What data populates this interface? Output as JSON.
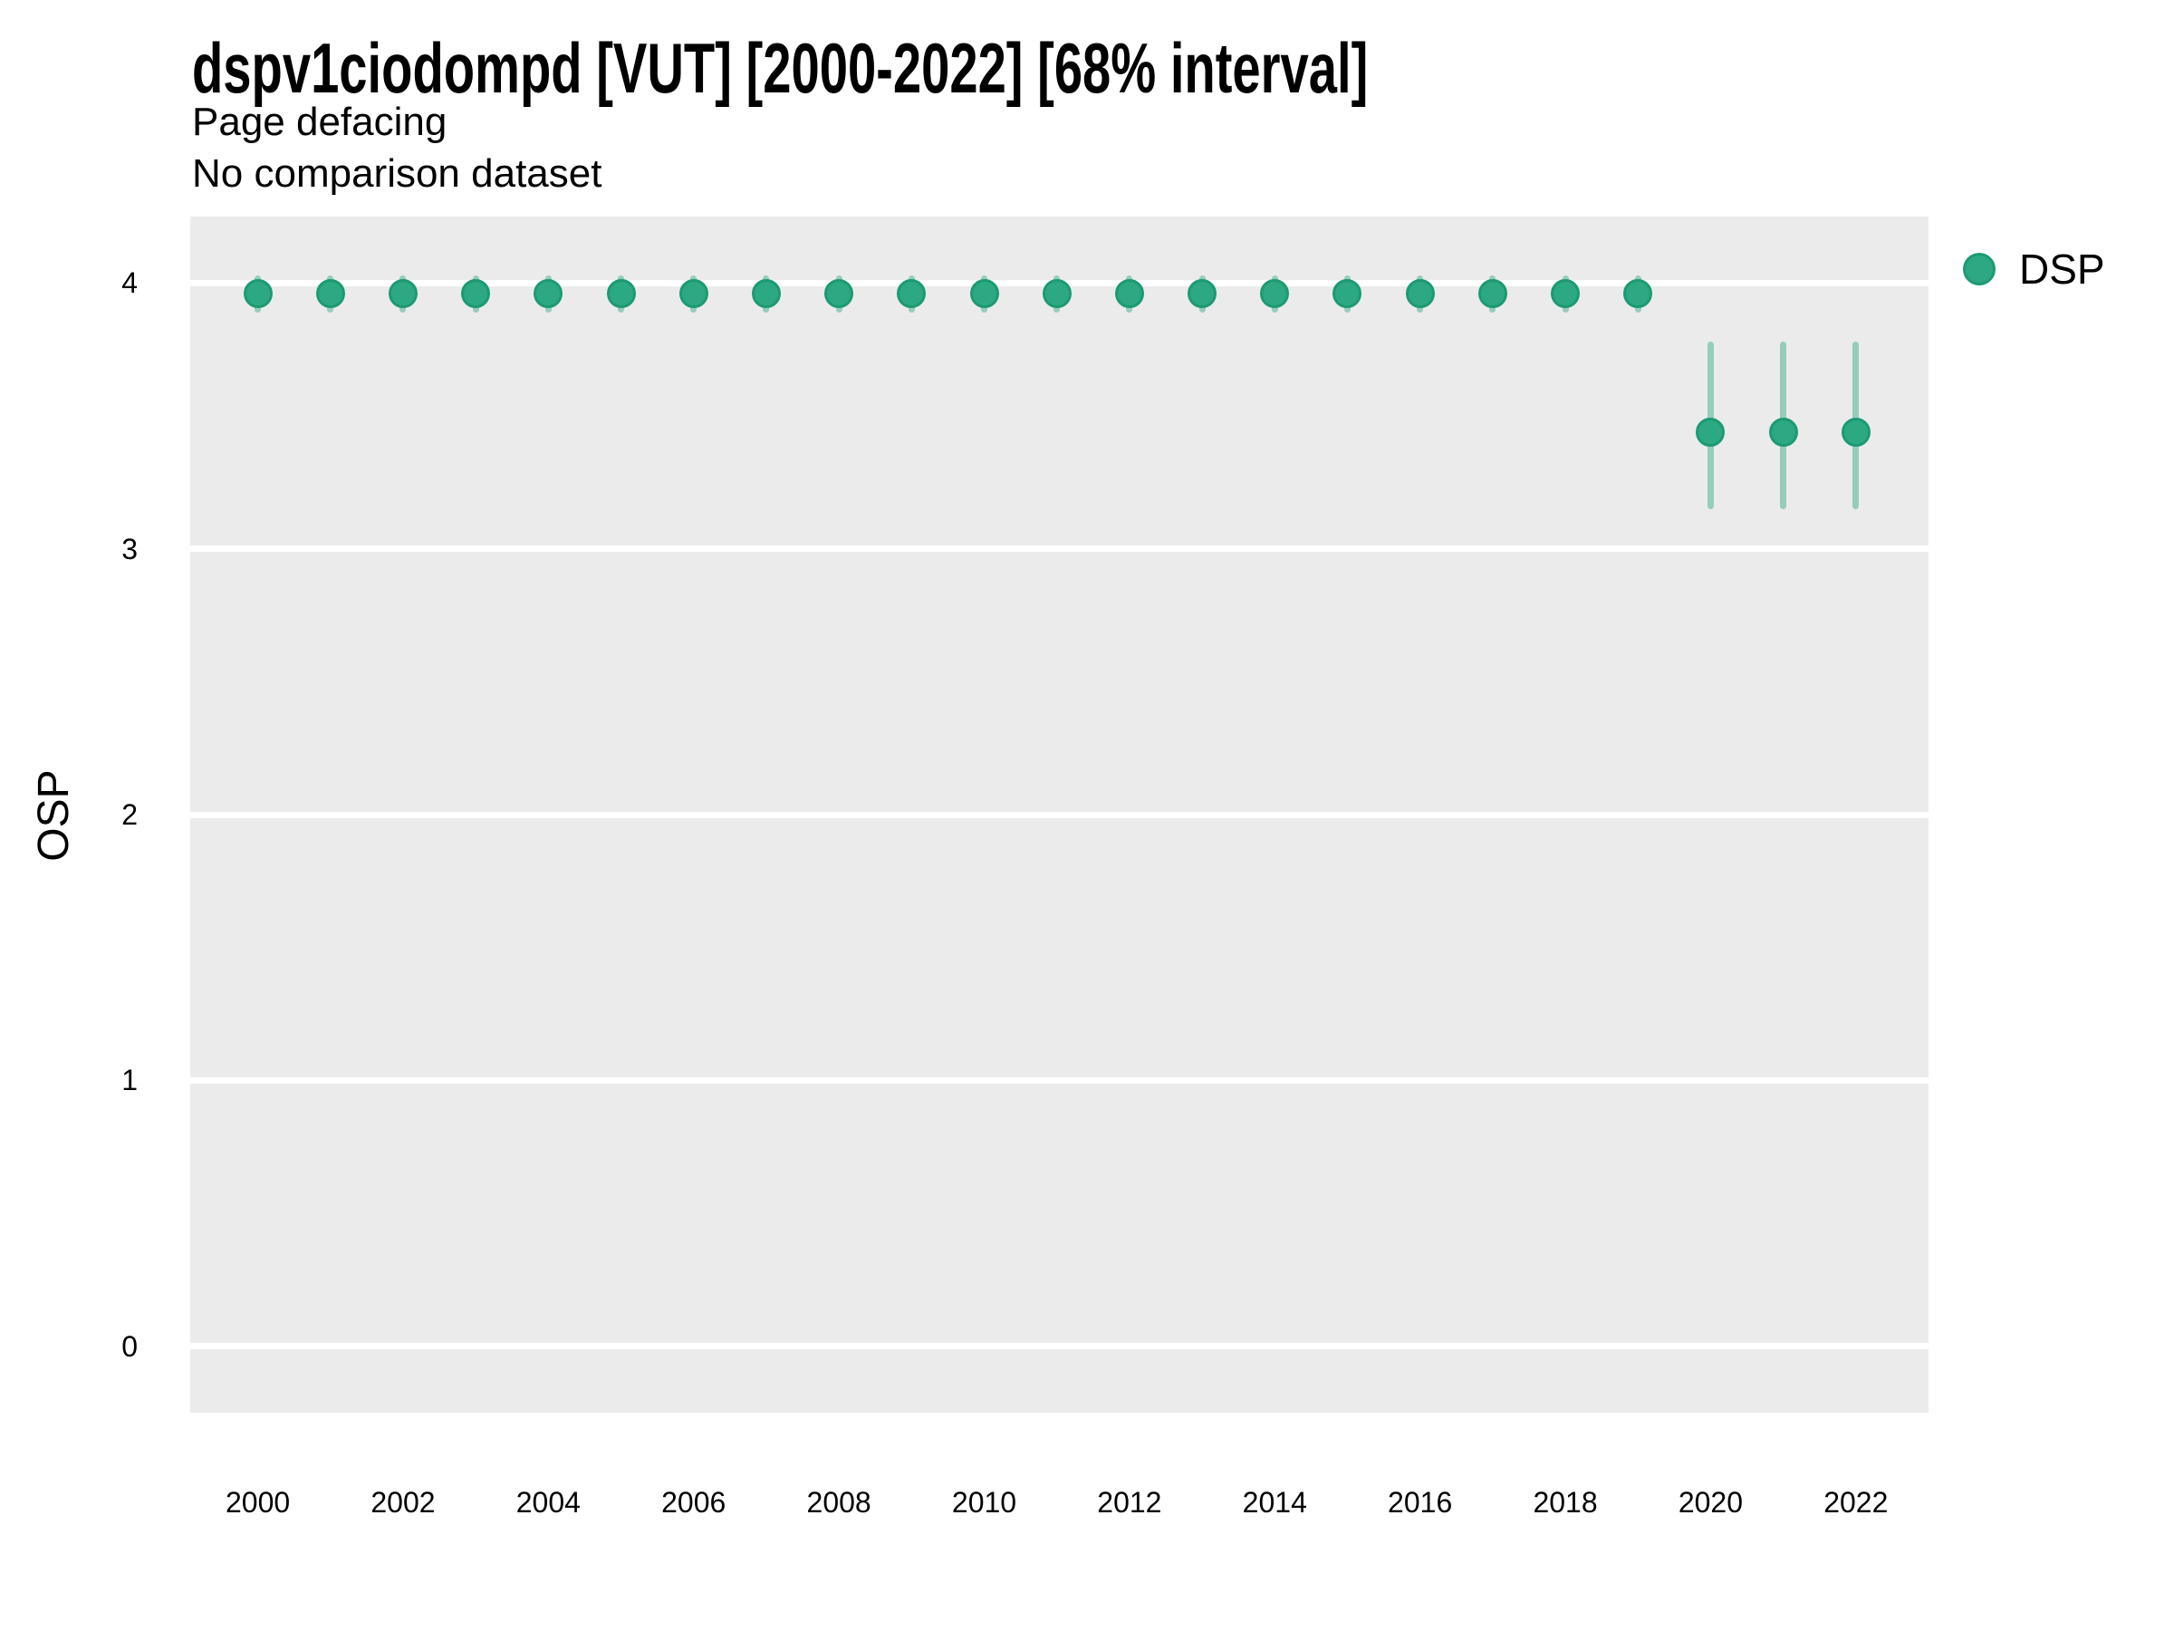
{
  "title": "dspv1ciodompd [VUT] [2000-2022] [68% interval]",
  "subtitle": "Page defacing",
  "subtitle2": "No comparison dataset",
  "legend": {
    "position": "right",
    "items": [
      {
        "label": "DSP",
        "marker": "circle",
        "color": "#2ca883",
        "stroke": "#1d9a72"
      }
    ]
  },
  "colors": {
    "panel_background": "#ebebeb",
    "gridline": "#ffffff",
    "point_fill": "#2ca883",
    "point_stroke": "#1d9a72",
    "interval_line": "rgba(44,168,131,0.45)",
    "text": "#000000"
  },
  "chart_data": {
    "type": "scatter",
    "title": "dspv1ciodompd [VUT] [2000-2022] [68% interval]",
    "subtitle": "Page defacing",
    "note": "No comparison dataset",
    "xlabel": "",
    "ylabel": "OSP",
    "x_ticks": [
      2000,
      2002,
      2004,
      2006,
      2008,
      2010,
      2012,
      2014,
      2016,
      2018,
      2020,
      2022
    ],
    "y_ticks": [
      0,
      1,
      2,
      3,
      4
    ],
    "xlim": [
      1999.07,
      2023.0
    ],
    "ylim": [
      -0.25,
      4.25
    ],
    "grid": "major-horizontal-only",
    "legend_position": "right",
    "interval_label": "68% interval",
    "series": [
      {
        "name": "DSP",
        "points": [
          {
            "year": 2000,
            "value": 3.96,
            "lo": 3.89,
            "hi": 4.03
          },
          {
            "year": 2001,
            "value": 3.96,
            "lo": 3.89,
            "hi": 4.03
          },
          {
            "year": 2002,
            "value": 3.96,
            "lo": 3.89,
            "hi": 4.03
          },
          {
            "year": 2003,
            "value": 3.96,
            "lo": 3.89,
            "hi": 4.03
          },
          {
            "year": 2004,
            "value": 3.96,
            "lo": 3.89,
            "hi": 4.03
          },
          {
            "year": 2005,
            "value": 3.96,
            "lo": 3.89,
            "hi": 4.03
          },
          {
            "year": 2006,
            "value": 3.96,
            "lo": 3.89,
            "hi": 4.03
          },
          {
            "year": 2007,
            "value": 3.96,
            "lo": 3.89,
            "hi": 4.03
          },
          {
            "year": 2008,
            "value": 3.96,
            "lo": 3.89,
            "hi": 4.03
          },
          {
            "year": 2009,
            "value": 3.96,
            "lo": 3.89,
            "hi": 4.03
          },
          {
            "year": 2010,
            "value": 3.96,
            "lo": 3.89,
            "hi": 4.03
          },
          {
            "year": 2011,
            "value": 3.96,
            "lo": 3.89,
            "hi": 4.03
          },
          {
            "year": 2012,
            "value": 3.96,
            "lo": 3.89,
            "hi": 4.03
          },
          {
            "year": 2013,
            "value": 3.96,
            "lo": 3.89,
            "hi": 4.03
          },
          {
            "year": 2014,
            "value": 3.96,
            "lo": 3.89,
            "hi": 4.03
          },
          {
            "year": 2015,
            "value": 3.96,
            "lo": 3.89,
            "hi": 4.03
          },
          {
            "year": 2016,
            "value": 3.96,
            "lo": 3.89,
            "hi": 4.03
          },
          {
            "year": 2017,
            "value": 3.96,
            "lo": 3.89,
            "hi": 4.03
          },
          {
            "year": 2018,
            "value": 3.96,
            "lo": 3.89,
            "hi": 4.03
          },
          {
            "year": 2019,
            "value": 3.96,
            "lo": 3.89,
            "hi": 4.03
          },
          {
            "year": 2020,
            "value": 3.44,
            "lo": 3.15,
            "hi": 3.78
          },
          {
            "year": 2021,
            "value": 3.44,
            "lo": 3.15,
            "hi": 3.78
          },
          {
            "year": 2022,
            "value": 3.44,
            "lo": 3.15,
            "hi": 3.78
          }
        ]
      }
    ]
  }
}
